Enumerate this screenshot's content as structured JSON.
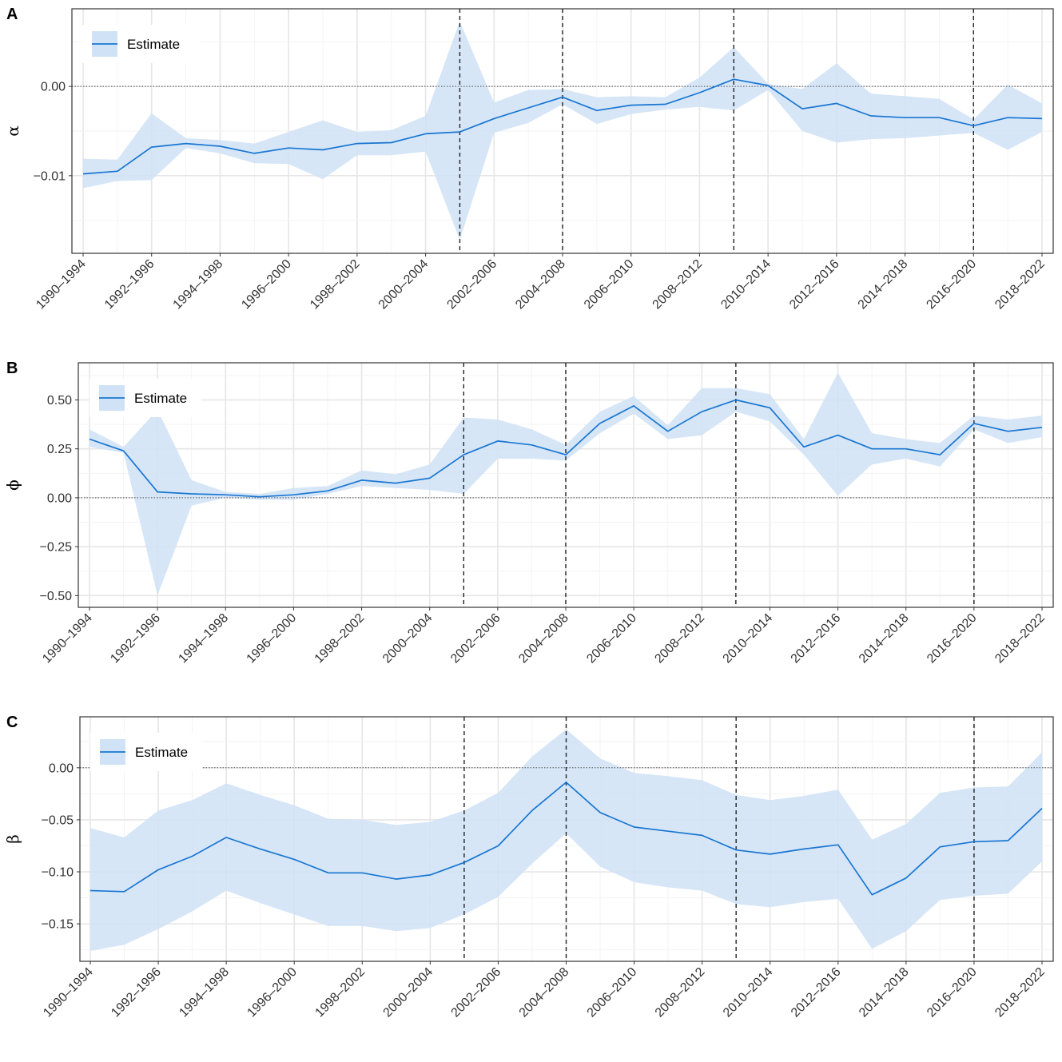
{
  "colors": {
    "line": "#1976D2",
    "band": "#CFE2F6",
    "grid_major": "#E6E6E6",
    "grid_minor": "#F2F2F2",
    "frame": "#333333",
    "vline": "#222222"
  },
  "chart_data": [
    {
      "type": "line",
      "panel_label": "A",
      "ylabel": "α",
      "legend": {
        "label": "Estimate",
        "placement": "top-left"
      },
      "x_tick_labels": [
        "1990–1994",
        "1992–1996",
        "1994–1998",
        "1996–2000",
        "1998–2002",
        "2000–2004",
        "2002–2006",
        "2004–2008",
        "2006–2010",
        "2008–2012",
        "2010–2014",
        "2012–2016",
        "2014–2018",
        "2016–2020",
        "2018–2022"
      ],
      "x_categories": [
        "1990–1994",
        "1991–1995",
        "1992–1996",
        "1993–1997",
        "1994–1998",
        "1995–1999",
        "1996–2000",
        "1997–2001",
        "1998–2002",
        "1999–2003",
        "2000–2004",
        "2001–2005",
        "2002–2006",
        "2003–2007",
        "2004–2008",
        "2005–2009",
        "2006–2010",
        "2007–2011",
        "2008–2012",
        "2009–2013",
        "2010–2014",
        "2011–2015",
        "2012–2016",
        "2013–2017",
        "2014–2018",
        "2015–2019",
        "2016–2020",
        "2017–2021",
        "2018–2022"
      ],
      "y_ticks": [
        -0.01,
        0.0
      ],
      "y_tick_labels": [
        "−0.01",
        "0.00"
      ],
      "ylim": [
        -0.0187,
        0.0087
      ],
      "zero_line": 0,
      "vlines": [
        "2001–2005",
        "2004–2008",
        "2009–2013",
        "2016–2020"
      ],
      "series": [
        {
          "name": "Estimate",
          "values": [
            -0.0098,
            -0.0095,
            -0.0068,
            -0.0064,
            -0.0067,
            -0.0075,
            -0.0069,
            -0.0071,
            -0.0064,
            -0.0063,
            -0.0053,
            -0.0051,
            -0.0036,
            -0.0024,
            -0.0012,
            -0.0027,
            -0.0021,
            -0.002,
            -0.0007,
            0.0008,
            0.0001,
            -0.0025,
            -0.0019,
            -0.0033,
            -0.0035,
            -0.0035,
            -0.0044,
            -0.0035,
            -0.0036
          ],
          "lower": [
            -0.0114,
            -0.0106,
            -0.0105,
            -0.0069,
            -0.0075,
            -0.0086,
            -0.0087,
            -0.0104,
            -0.0077,
            -0.0077,
            -0.0073,
            -0.0172,
            -0.0052,
            -0.0041,
            -0.002,
            -0.0042,
            -0.0031,
            -0.0026,
            -0.0023,
            -0.0027,
            -0.0004,
            -0.005,
            -0.0063,
            -0.0059,
            -0.0058,
            -0.0055,
            -0.0052,
            -0.0071,
            -0.0051
          ],
          "upper": [
            -0.0081,
            -0.0082,
            -0.003,
            -0.0058,
            -0.006,
            -0.0064,
            -0.0051,
            -0.0038,
            -0.0051,
            -0.0049,
            -0.0033,
            0.0073,
            -0.0018,
            -0.0004,
            -0.0003,
            -0.0012,
            -0.0011,
            -0.0012,
            0.001,
            0.0044,
            0.0003,
            -0.0003,
            0.0026,
            -0.0008,
            -0.0011,
            -0.0014,
            -0.0037,
            0.0002,
            -0.0019
          ]
        }
      ]
    },
    {
      "type": "line",
      "panel_label": "B",
      "ylabel": "ϕ",
      "legend": {
        "label": "Estimate",
        "placement": "top-left"
      },
      "x_tick_labels": [
        "1990–1994",
        "1992–1996",
        "1994–1998",
        "1996–2000",
        "1998–2002",
        "2000–2004",
        "2002–2006",
        "2004–2008",
        "2006–2010",
        "2008–2012",
        "2010–2014",
        "2012–2016",
        "2014–2018",
        "2016–2020",
        "2018–2022"
      ],
      "x_categories": [
        "1990–1994",
        "1991–1995",
        "1992–1996",
        "1993–1997",
        "1994–1998",
        "1995–1999",
        "1996–2000",
        "1997–2001",
        "1998–2002",
        "1999–2003",
        "2000–2004",
        "2001–2005",
        "2002–2006",
        "2003–2007",
        "2004–2008",
        "2005–2009",
        "2006–2010",
        "2007–2011",
        "2008–2012",
        "2009–2013",
        "2010–2014",
        "2011–2015",
        "2012–2016",
        "2013–2017",
        "2014–2018",
        "2015–2019",
        "2016–2020",
        "2017–2021",
        "2018–2022"
      ],
      "y_ticks": [
        -0.5,
        -0.25,
        0,
        0.25,
        0.5
      ],
      "y_tick_labels": [
        "−0.50",
        "−0.25",
        "0.00",
        "0.25",
        "0.50"
      ],
      "ylim": [
        -0.56,
        0.69
      ],
      "zero_line": 0,
      "vlines": [
        "2001–2005",
        "2004–2008",
        "2009–2013",
        "2016–2020"
      ],
      "series": [
        {
          "name": "Estimate",
          "values": [
            0.3,
            0.24,
            0.03,
            0.02,
            0.015,
            0.005,
            0.015,
            0.035,
            0.09,
            0.075,
            0.1,
            0.22,
            0.29,
            0.27,
            0.22,
            0.38,
            0.47,
            0.34,
            0.44,
            0.5,
            0.46,
            0.26,
            0.32,
            0.25,
            0.25,
            0.22,
            0.38,
            0.34,
            0.36
          ],
          "lower": [
            0.26,
            0.23,
            -0.5,
            -0.04,
            0.0,
            -0.01,
            -0.01,
            0.02,
            0.06,
            0.05,
            0.04,
            0.02,
            0.2,
            0.2,
            0.19,
            0.33,
            0.43,
            0.3,
            0.32,
            0.44,
            0.39,
            0.22,
            0.01,
            0.17,
            0.2,
            0.16,
            0.35,
            0.28,
            0.31
          ],
          "upper": [
            0.35,
            0.26,
            0.45,
            0.09,
            0.03,
            0.02,
            0.05,
            0.06,
            0.14,
            0.12,
            0.17,
            0.41,
            0.4,
            0.35,
            0.27,
            0.44,
            0.52,
            0.37,
            0.56,
            0.56,
            0.53,
            0.3,
            0.64,
            0.33,
            0.3,
            0.28,
            0.42,
            0.4,
            0.42
          ]
        }
      ]
    },
    {
      "type": "line",
      "panel_label": "C",
      "ylabel": "β",
      "legend": {
        "label": "Estimate",
        "placement": "top-left"
      },
      "x_tick_labels": [
        "1990–1994",
        "1992–1996",
        "1994–1998",
        "1996–2000",
        "1998–2002",
        "2000–2004",
        "2002–2006",
        "2004–2008",
        "2006–2010",
        "2008–2012",
        "2010–2014",
        "2012–2016",
        "2014–2018",
        "2016–2020",
        "2018–2022"
      ],
      "x_categories": [
        "1990–1994",
        "1991–1995",
        "1992–1996",
        "1993–1997",
        "1994–1998",
        "1995–1999",
        "1996–2000",
        "1997–2001",
        "1998–2002",
        "1999–2003",
        "2000–2004",
        "2001–2005",
        "2002–2006",
        "2003–2007",
        "2004–2008",
        "2005–2009",
        "2006–2010",
        "2007–2011",
        "2008–2012",
        "2009–2013",
        "2010–2014",
        "2011–2015",
        "2012–2016",
        "2013–2017",
        "2014–2018",
        "2015–2019",
        "2016–2020",
        "2017–2021",
        "2018–2022"
      ],
      "y_ticks": [
        -0.15,
        -0.1,
        -0.05,
        0.0
      ],
      "y_tick_labels": [
        "−0.15",
        "−0.10",
        "−0.05",
        "0.00"
      ],
      "ylim": [
        -0.186,
        0.049
      ],
      "zero_line": 0,
      "vlines": [
        "2001–2005",
        "2004–2008",
        "2009–2013",
        "2016–2020"
      ],
      "series": [
        {
          "name": "Estimate",
          "values": [
            -0.118,
            -0.119,
            -0.098,
            -0.085,
            -0.067,
            -0.078,
            -0.088,
            -0.101,
            -0.101,
            -0.107,
            -0.103,
            -0.091,
            -0.075,
            -0.041,
            -0.014,
            -0.043,
            -0.057,
            -0.061,
            -0.065,
            -0.079,
            -0.083,
            -0.078,
            -0.074,
            -0.122,
            -0.106,
            -0.076,
            -0.071,
            -0.07,
            -0.039
          ],
          "lower": [
            -0.176,
            -0.17,
            -0.155,
            -0.138,
            -0.118,
            -0.13,
            -0.141,
            -0.152,
            -0.152,
            -0.157,
            -0.154,
            -0.141,
            -0.124,
            -0.092,
            -0.063,
            -0.095,
            -0.11,
            -0.115,
            -0.118,
            -0.131,
            -0.134,
            -0.129,
            -0.126,
            -0.174,
            -0.157,
            -0.127,
            -0.123,
            -0.121,
            -0.09
          ],
          "upper": [
            -0.058,
            -0.067,
            -0.041,
            -0.031,
            -0.015,
            -0.026,
            -0.036,
            -0.049,
            -0.05,
            -0.055,
            -0.052,
            -0.041,
            -0.024,
            0.011,
            0.037,
            0.009,
            -0.005,
            -0.008,
            -0.012,
            -0.026,
            -0.031,
            -0.027,
            -0.021,
            -0.069,
            -0.054,
            -0.024,
            -0.019,
            -0.018,
            0.015
          ]
        }
      ]
    }
  ]
}
